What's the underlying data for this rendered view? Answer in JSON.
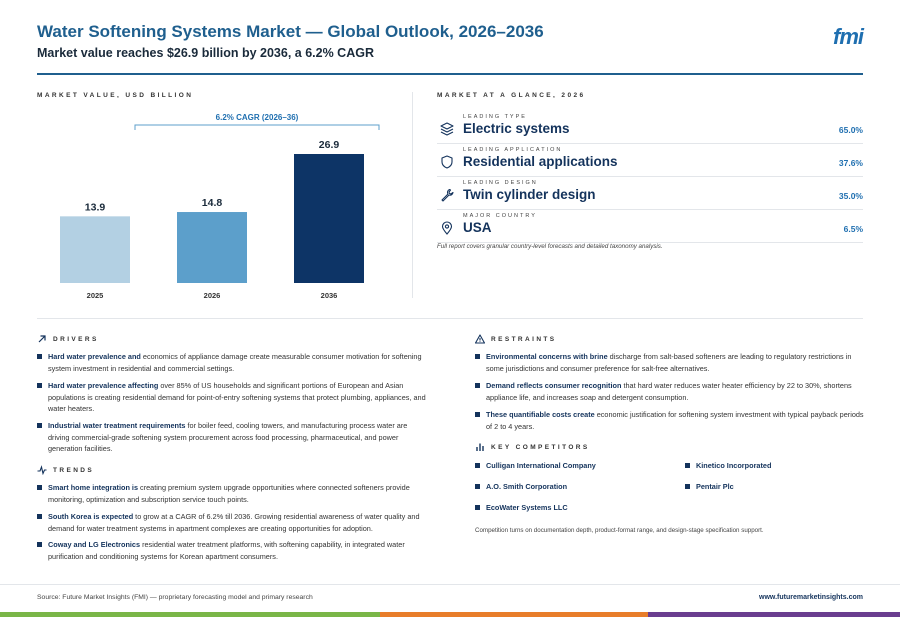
{
  "header": {
    "title": "Water Softening Systems Market — Global Outlook, 2026–2036",
    "subtitle": "Market value reaches $26.9 billion by 2036, a 6.2% CAGR",
    "logo": "fmi"
  },
  "chart": {
    "section_label": "MARKET VALUE, USD BILLION",
    "cagr_label": "6.2% CAGR (2026–36)"
  },
  "chart_data": {
    "type": "bar",
    "categories": [
      "2025",
      "2026",
      "2036"
    ],
    "values": [
      13.9,
      14.8,
      26.9
    ],
    "data_labels": [
      "13.9",
      "14.8",
      "26.9"
    ],
    "colors": [
      "#b3d0e3",
      "#5c9fcb",
      "#0d3466"
    ],
    "ylabel": "",
    "xlabel": "",
    "title": "",
    "ylim": [
      0,
      26.9
    ],
    "grid": false,
    "legend": "none"
  },
  "glance": {
    "section_label": "MARKET AT A GLANCE, 2026",
    "rows": [
      {
        "sub": "LEADING TYPE",
        "main": "Electric systems",
        "pct": "65.0%",
        "icon": "layers-icon"
      },
      {
        "sub": "LEADING APPLICATION",
        "main": "Residential applications",
        "pct": "37.6%",
        "icon": "shield-icon"
      },
      {
        "sub": "LEADING DESIGN",
        "main": "Twin cylinder design",
        "pct": "35.0%",
        "icon": "wrench-icon"
      },
      {
        "sub": "MAJOR COUNTRY",
        "main": "USA",
        "pct": "6.5%",
        "icon": "location-pin-icon"
      }
    ],
    "note": "Full report covers granular country-level forecasts and detailed taxonomy analysis."
  },
  "drivers": {
    "label": "DRIVERS",
    "items": [
      {
        "bold": "Hard water prevalence and",
        "text": " economics of appliance damage create measurable consumer motivation for softening system investment in residential and commercial settings."
      },
      {
        "bold": "Hard water prevalence affecting",
        "text": " over 85% of US households and significant portions of European and Asian populations is creating residential demand for point-of-entry softening systems that protect plumbing, appliances, and water heaters."
      },
      {
        "bold": "Industrial water treatment requirements",
        "text": " for boiler feed, cooling towers, and manufacturing process water are driving commercial-grade softening system procurement across food processing, pharmaceutical, and power generation facilities."
      }
    ]
  },
  "trends": {
    "label": "TRENDS",
    "items": [
      {
        "bold": "Smart home integration is",
        "text": " creating premium system upgrade opportunities where connected softeners provide monitoring, optimization and subscription service touch points."
      },
      {
        "bold": "South Korea is expected",
        "text": " to grow at a CAGR of 6.2% till 2036. Growing residential awareness of water quality and demand for water treatment systems in apartment complexes are creating opportunities for adoption."
      },
      {
        "bold": "Coway and LG Electronics",
        "text": " residential water treatment platforms, with softening capability, in integrated water purification and conditioning systems for Korean apartment consumers."
      }
    ]
  },
  "restraints": {
    "label": "RESTRAINTS",
    "items": [
      {
        "bold": "Environmental concerns with brine",
        "text": " discharge from salt-based softeners are leading to regulatory restrictions in some jurisdictions and consumer preference for salt-free alternatives."
      },
      {
        "bold": "Demand reflects consumer recognition",
        "text": " that hard water reduces water heater efficiency by 22 to 30%, shortens appliance life, and increases soap and detergent consumption."
      },
      {
        "bold": "These quantifiable costs create",
        "text": " economic justification for softening system investment with typical payback periods of 2 to 4 years."
      }
    ]
  },
  "competitors": {
    "label": "KEY COMPETITORS",
    "items": [
      "Culligan International Company",
      "Kinetico Incorporated",
      "A.O. Smith Corporation",
      "Pentair Plc",
      "EcoWater Systems LLC"
    ],
    "note": "Competition turns on documentation depth, product-format range, and design-stage specification support."
  },
  "footer": {
    "source": "Source: Future Market Insights (FMI) — proprietary forecasting model and primary research",
    "site": "www.futuremarketinsights.com"
  },
  "colors": {
    "brand_blue": "#1f5f8e",
    "navy": "#14335c",
    "stripe_green": "#7ab648",
    "stripe_orange": "#e87d2a",
    "stripe_purple": "#6a3d8f"
  }
}
